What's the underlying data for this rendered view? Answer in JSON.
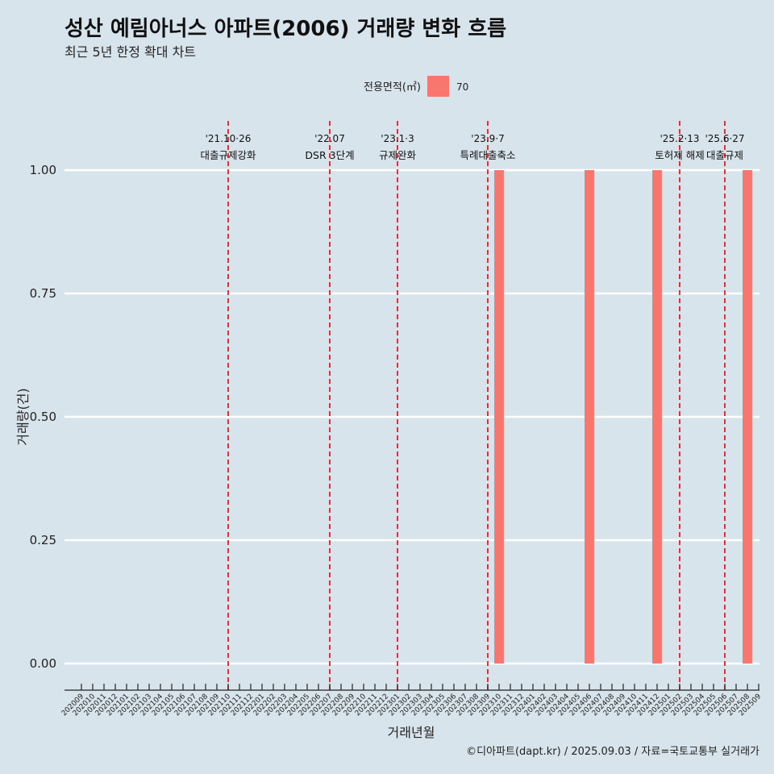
{
  "title": "성산 예림아너스 아파트(2006) 거래량 변화 흐름",
  "subtitle": "최근 5년 한정 확대 차트",
  "caption": "©디아파트(dapt.kr) / 2025.09.03 / 자료=국토교통부 실거래가",
  "colors": {
    "background": "#d8e4eb",
    "bar": "#f8766d",
    "event_line": "#e8000b",
    "gridline": "#ffffff"
  },
  "chart_data": {
    "type": "bar",
    "xlabel": "거래년월",
    "ylabel": "거래량(건)",
    "ylim": [
      0,
      1
    ],
    "yticks": [
      "0.00",
      "0.25",
      "0.50",
      "0.75",
      "1.00"
    ],
    "legend": {
      "title": "전용면적(㎡)",
      "entries": [
        "70"
      ],
      "position": "top"
    },
    "categories": [
      "202009",
      "202010",
      "202011",
      "202012",
      "202101",
      "202102",
      "202103",
      "202104",
      "202105",
      "202106",
      "202107",
      "202108",
      "202109",
      "202110",
      "202111",
      "202112",
      "202201",
      "202202",
      "202203",
      "202204",
      "202205",
      "202206",
      "202207",
      "202208",
      "202209",
      "202210",
      "202211",
      "202212",
      "202301",
      "202302",
      "202303",
      "202304",
      "202305",
      "202306",
      "202307",
      "202308",
      "202309",
      "202310",
      "202311",
      "202312",
      "202401",
      "202402",
      "202403",
      "202404",
      "202405",
      "202406",
      "202407",
      "202408",
      "202409",
      "202410",
      "202411",
      "202412",
      "202501",
      "202502",
      "202503",
      "202504",
      "202505",
      "202506",
      "202507",
      "202508",
      "202509"
    ],
    "series": [
      {
        "name": "70",
        "points": [
          {
            "x": "202310",
            "value": 1
          },
          {
            "x": "202406",
            "value": 1
          },
          {
            "x": "202412",
            "value": 1
          },
          {
            "x": "202508",
            "value": 1
          }
        ]
      }
    ],
    "events": [
      {
        "date": "'21.10·26",
        "label": "대출규제강화",
        "month": "202110",
        "offset": 0.0
      },
      {
        "date": "'22.07",
        "label": "DSR 3단계",
        "month": "202207",
        "offset": 0.0
      },
      {
        "date": "'23.1·3",
        "label": "규제완화",
        "month": "202301",
        "offset": 0.0
      },
      {
        "date": "'23.9·7",
        "label": "특례대출축소",
        "month": "202309",
        "offset": 0.0
      },
      {
        "date": "'25.2·13",
        "label": "토허제 해제",
        "month": "202502",
        "offset": 0.0
      },
      {
        "date": "'25.6·27",
        "label": "대출규제",
        "month": "202506",
        "offset": 0.0
      }
    ]
  }
}
